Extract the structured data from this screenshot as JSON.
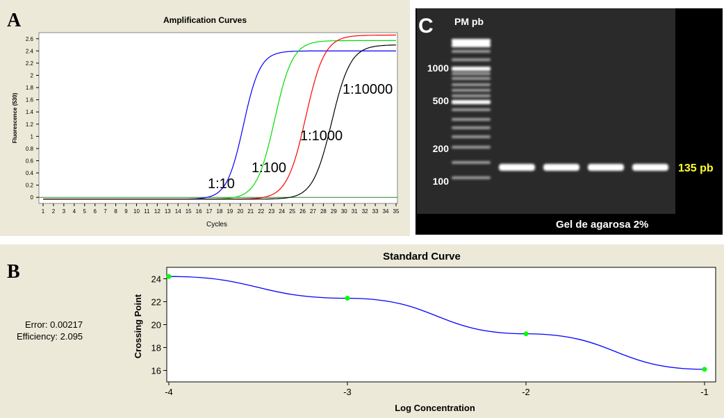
{
  "panels": {
    "a_letter": "A",
    "b_letter": "B",
    "c_letter": "C"
  },
  "amplification": {
    "title": "Amplification Curves",
    "xlabel": "Cycles",
    "ylabel": "Fluorescence (530)",
    "annotations": [
      "1:10",
      "1:100",
      "1:1000",
      "1:10000"
    ]
  },
  "standard_curve": {
    "title": "Standard Curve",
    "xlabel": "Log Concentration",
    "ylabel": "Crossing Point",
    "error_text": "Error: 0.00217",
    "efficiency_text": "Efficiency: 2.095"
  },
  "gel": {
    "ladder_label": "PM pb",
    "marker_labels": [
      "1000",
      "500",
      "200",
      "100"
    ],
    "band_label": "135 pb",
    "footer": "Gel de agarosa 2%",
    "band_label_color": "#ffff33",
    "lane_count_samples": 4
  },
  "colors": {
    "blue": "#0000ff",
    "green": "#00dd00",
    "red": "#ff0000",
    "black": "#000000",
    "threshold": "#228822",
    "point": "#00ff00"
  },
  "chart_data": [
    {
      "type": "line",
      "title": "Amplification Curves",
      "xlabel": "Cycles",
      "ylabel": "Fluorescence (530)",
      "xlim": [
        1,
        35
      ],
      "ylim": [
        -0.1,
        2.7
      ],
      "x_ticks": [
        1,
        2,
        3,
        4,
        5,
        6,
        7,
        8,
        9,
        10,
        11,
        12,
        13,
        14,
        15,
        16,
        17,
        18,
        19,
        20,
        21,
        22,
        23,
        24,
        25,
        26,
        27,
        28,
        29,
        30,
        31,
        32,
        33,
        34,
        35
      ],
      "y_ticks": [
        0,
        0.2,
        0.4,
        0.6,
        0.8,
        1,
        1.2,
        1.4,
        1.6,
        1.8,
        2,
        2.2,
        2.4,
        2.6
      ],
      "series": [
        {
          "name": "1:10",
          "color": "#0000ff",
          "plateau": 2.4,
          "midpoint": 20.3,
          "slope": 1.25
        },
        {
          "name": "1:100",
          "color": "#00dd00",
          "plateau": 2.57,
          "midpoint": 23.3,
          "slope": 1.15
        },
        {
          "name": "1:1000",
          "color": "#ff0000",
          "plateau": 2.66,
          "midpoint": 26.3,
          "slope": 1.1
        },
        {
          "name": "1:10000",
          "color": "#000000",
          "plateau": 2.5,
          "midpoint": 28.8,
          "slope": 1.1
        }
      ],
      "threshold": 0
    },
    {
      "type": "scatter",
      "title": "Standard Curve",
      "xlabel": "Log Concentration",
      "ylabel": "Crossing Point",
      "xlim": [
        -4,
        -1
      ],
      "ylim": [
        15,
        25
      ],
      "x_ticks": [
        -4,
        -3,
        -2,
        -1
      ],
      "y_ticks": [
        16,
        18,
        20,
        22,
        24
      ],
      "points": [
        {
          "x": -4,
          "y": 24.2
        },
        {
          "x": -3,
          "y": 22.3
        },
        {
          "x": -2,
          "y": 19.2
        },
        {
          "x": -1,
          "y": 16.1
        }
      ]
    }
  ]
}
